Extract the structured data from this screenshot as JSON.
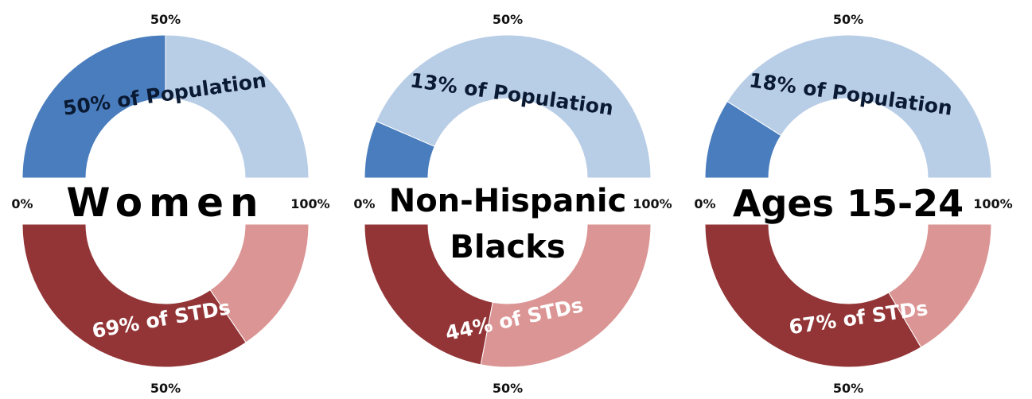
{
  "colors": {
    "pop_dark": "#4a7dbd",
    "pop_light": "#b8cde6",
    "std_dark": "#933537",
    "std_light": "#db9594"
  },
  "chart_data": [
    {
      "type": "donut",
      "title": "Women",
      "title_lines": [
        "Women"
      ],
      "scale_labels": {
        "left": "0%",
        "top": "50%",
        "right": "100%",
        "bottom": "50%"
      },
      "series": [
        {
          "name": "Population",
          "value": 50,
          "label": "50% of Population"
        },
        {
          "name": "STDs",
          "value": 69,
          "label": "69% of STDs"
        }
      ]
    },
    {
      "type": "donut",
      "title": "Non-Hispanic Blacks",
      "title_lines": [
        "Non-Hispanic",
        "Blacks"
      ],
      "scale_labels": {
        "left": "0%",
        "top": "50%",
        "right": "100%",
        "bottom": "50%"
      },
      "series": [
        {
          "name": "Population",
          "value": 13,
          "label": "13% of Population"
        },
        {
          "name": "STDs",
          "value": 44,
          "label": "44% of STDs"
        }
      ]
    },
    {
      "type": "donut",
      "title": "Ages 15-24",
      "title_lines": [
        "Ages 15-24"
      ],
      "scale_labels": {
        "left": "0%",
        "top": "50%",
        "right": "100%",
        "bottom": "50%"
      },
      "series": [
        {
          "name": "Population",
          "value": 18,
          "label": "18% of Population"
        },
        {
          "name": "STDs",
          "value": 67,
          "label": "67% of STDs"
        }
      ]
    }
  ]
}
